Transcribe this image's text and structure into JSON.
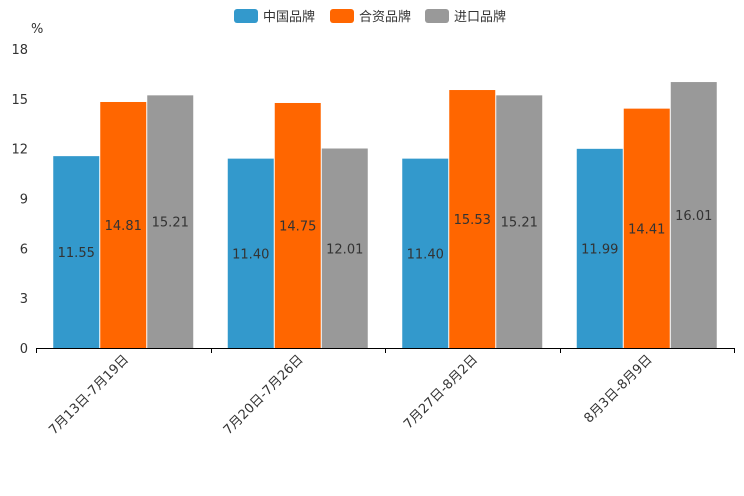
{
  "chart_data": {
    "type": "bar",
    "ylabel": "%",
    "ylim": [
      0,
      18
    ],
    "yticks": [
      0,
      3,
      6,
      9,
      12,
      15,
      18
    ],
    "categories": [
      "7月13日-7月19日",
      "7月20日-7月26日",
      "7月27日-8月2日",
      "8月3日-8月9日"
    ],
    "series": [
      {
        "name": "中国品牌",
        "color": "#3399cc",
        "values": [
          11.55,
          11.4,
          11.4,
          11.99
        ],
        "labels": [
          "11.55",
          "11.40",
          "11.40",
          "11.99"
        ]
      },
      {
        "name": "合资品牌",
        "color": "#ff6600",
        "values": [
          14.81,
          14.75,
          15.53,
          14.41
        ],
        "labels": [
          "14.81",
          "14.75",
          "15.53",
          "14.41"
        ]
      },
      {
        "name": "进口品牌",
        "color": "#999999",
        "values": [
          15.21,
          12.01,
          15.21,
          16.01
        ],
        "labels": [
          "15.21",
          "12.01",
          "15.21",
          "16.01"
        ]
      }
    ],
    "grid": false,
    "legend_position": "top-center"
  }
}
